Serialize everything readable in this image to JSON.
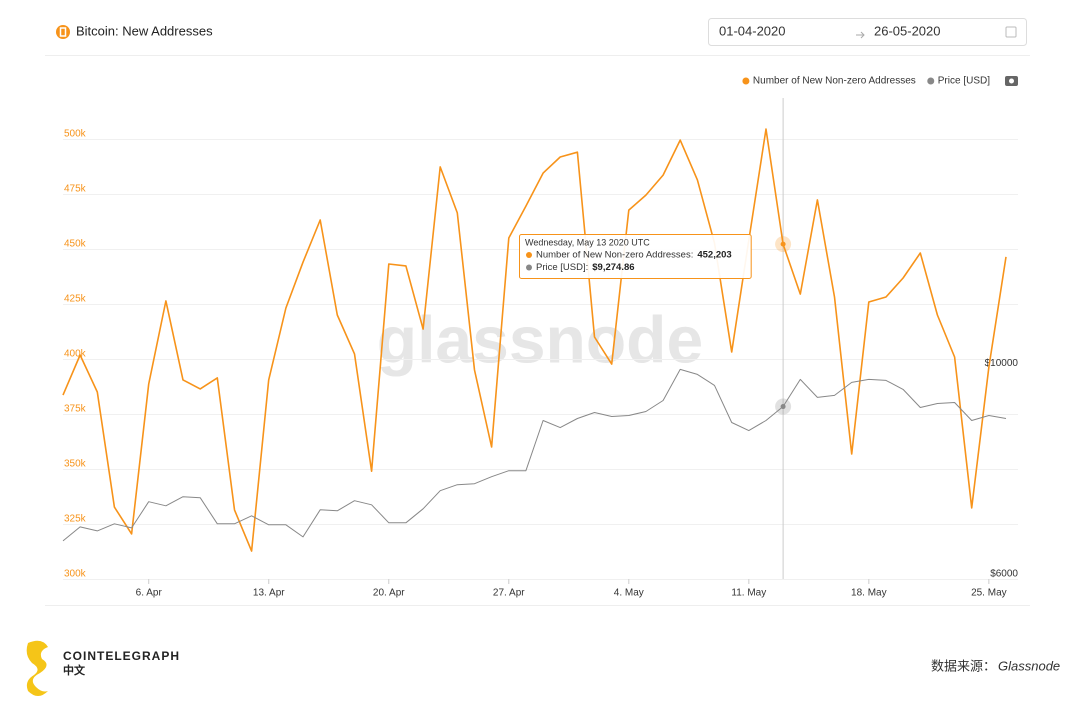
{
  "header": {
    "title": "Bitcoin: New Addresses",
    "date_from": "01-04-2020",
    "date_to": "26-05-2020"
  },
  "chart_data": {
    "type": "line",
    "x": [
      "2020-04-01",
      "2020-04-02",
      "2020-04-03",
      "2020-04-04",
      "2020-04-05",
      "2020-04-06",
      "2020-04-07",
      "2020-04-08",
      "2020-04-09",
      "2020-04-10",
      "2020-04-11",
      "2020-04-12",
      "2020-04-13",
      "2020-04-14",
      "2020-04-15",
      "2020-04-16",
      "2020-04-17",
      "2020-04-18",
      "2020-04-19",
      "2020-04-20",
      "2020-04-21",
      "2020-04-22",
      "2020-04-23",
      "2020-04-24",
      "2020-04-25",
      "2020-04-26",
      "2020-04-27",
      "2020-04-28",
      "2020-04-29",
      "2020-04-30",
      "2020-05-01",
      "2020-05-02",
      "2020-05-03",
      "2020-05-04",
      "2020-05-05",
      "2020-05-06",
      "2020-05-07",
      "2020-05-08",
      "2020-05-09",
      "2020-05-10",
      "2020-05-11",
      "2020-05-12",
      "2020-05-13",
      "2020-05-14",
      "2020-05-15",
      "2020-05-16",
      "2020-05-17",
      "2020-05-18",
      "2020-05-19",
      "2020-05-20",
      "2020-05-21",
      "2020-05-22",
      "2020-05-23",
      "2020-05-24",
      "2020-05-25",
      "2020-05-26"
    ],
    "xlim": [
      "2020-04-01",
      "2020-05-26"
    ],
    "xticks": [
      {
        "value": "2020-04-06",
        "label": "6. Apr"
      },
      {
        "value": "2020-04-13",
        "label": "13. Apr"
      },
      {
        "value": "2020-04-20",
        "label": "20. Apr"
      },
      {
        "value": "2020-04-27",
        "label": "27. Apr"
      },
      {
        "value": "2020-05-04",
        "label": "4. May"
      },
      {
        "value": "2020-05-11",
        "label": "11. May"
      },
      {
        "value": "2020-05-18",
        "label": "18. May"
      },
      {
        "value": "2020-05-25",
        "label": "25. May"
      }
    ],
    "ylim": [
      300000,
      525000
    ],
    "yticks": [
      {
        "value": 300000,
        "label": "300k"
      },
      {
        "value": 325000,
        "label": "325k"
      },
      {
        "value": 350000,
        "label": "350k"
      },
      {
        "value": 375000,
        "label": "375k"
      },
      {
        "value": 400000,
        "label": "400k"
      },
      {
        "value": 425000,
        "label": "425k"
      },
      {
        "value": 450000,
        "label": "450k"
      },
      {
        "value": 475000,
        "label": "475k"
      },
      {
        "value": 500000,
        "label": "500k"
      }
    ],
    "y2lim": [
      6000,
      15400
    ],
    "y2ticks": [
      {
        "value": 6000,
        "label": "$6000"
      },
      {
        "value": 10000,
        "label": "$10000"
      }
    ],
    "grid": true,
    "legend": "top-right",
    "series": [
      {
        "name": "Number of New Non-zero Addresses",
        "color": "#f7931a",
        "values": [
          383600,
          401800,
          385000,
          332700,
          320500,
          388600,
          426400,
          390500,
          386400,
          391400,
          331400,
          312700,
          390500,
          423200,
          444000,
          463200,
          420000,
          402300,
          349000,
          443200,
          442300,
          413600,
          487300,
          466400,
          395000,
          360000,
          455000,
          469500,
          484500,
          491800,
          494000,
          410000,
          397700,
          467700,
          474500,
          483600,
          499500,
          481400,
          452700,
          403200,
          454000,
          504500,
          452203,
          429500,
          472300,
          428200,
          356800,
          425900,
          428200,
          436800,
          448200,
          420000,
          400900,
          332300,
          396400,
          446400
        ]
      },
      {
        "name": "Price [USD]",
        "color": "#888888",
        "axis": "y2",
        "values": [
          6724,
          6990,
          6914,
          7048,
          6971,
          7467,
          7390,
          7562,
          7543,
          7048,
          7048,
          7200,
          7029,
          7029,
          6800,
          7314,
          7295,
          7486,
          7410,
          7067,
          7067,
          7333,
          7676,
          7790,
          7810,
          7943,
          8057,
          8057,
          9010,
          8876,
          9048,
          9162,
          9086,
          9105,
          9181,
          9390,
          9981,
          9886,
          9676,
          8971,
          8819,
          9010,
          9274.86,
          9790,
          9448,
          9486,
          9733,
          9790,
          9771,
          9600,
          9257,
          9333,
          9352,
          9010,
          9105,
          9048
        ]
      }
    ],
    "tooltip": {
      "title": "Wednesday, May 13 2020 UTC",
      "x": "2020-05-13",
      "labels": [
        "Number of New Non-zero Addresses:",
        "Price [USD]:"
      ],
      "value_labels": [
        "452,203",
        "$9,274.86"
      ]
    },
    "watermark": "glassnode"
  },
  "footer": {
    "brand": "COINTELEGRAPH",
    "brand_sub": "中文",
    "source_label": "数据来源：",
    "source": "Glassnode"
  }
}
